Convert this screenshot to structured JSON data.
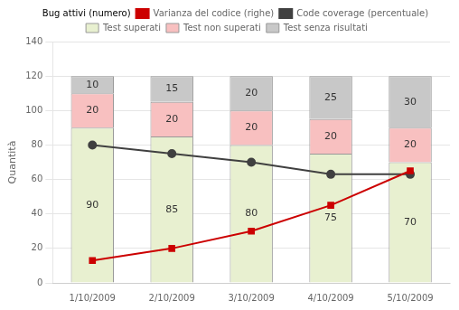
{
  "chart_data": {
    "type": "bar",
    "stacked": true,
    "categories": [
      "1/10/2009",
      "2/10/2009",
      "3/10/2009",
      "4/10/2009",
      "5/10/2009"
    ],
    "series": [
      {
        "name": "Test superati",
        "type": "bar",
        "color": "#e8f0d0",
        "values": [
          90,
          85,
          80,
          75,
          70
        ],
        "data_labels": true
      },
      {
        "name": "Test non superati",
        "type": "bar",
        "color": "#f8c0c0",
        "values": [
          20,
          20,
          20,
          20,
          20
        ],
        "data_labels": true
      },
      {
        "name": "Test senza risultati",
        "type": "bar",
        "color": "#c8c8c8",
        "values": [
          10,
          15,
          20,
          25,
          30
        ],
        "data_labels": true
      },
      {
        "name": "Varianza del codice (righe)",
        "type": "line",
        "color": "#cc0000",
        "marker": "square",
        "values": [
          13,
          20,
          30,
          45,
          65
        ]
      },
      {
        "name": "Code coverage (percentuale)",
        "type": "line",
        "color": "#404040",
        "marker": "circle",
        "values": [
          80,
          75,
          70,
          63,
          63
        ]
      }
    ],
    "annotations": [
      "Bug attivi (numero)"
    ],
    "ylabel": "Quantità",
    "ylim": [
      0,
      140
    ],
    "yticks": [
      0,
      20,
      40,
      60,
      80,
      100,
      120,
      140
    ],
    "grid": "y",
    "legend": "top"
  }
}
